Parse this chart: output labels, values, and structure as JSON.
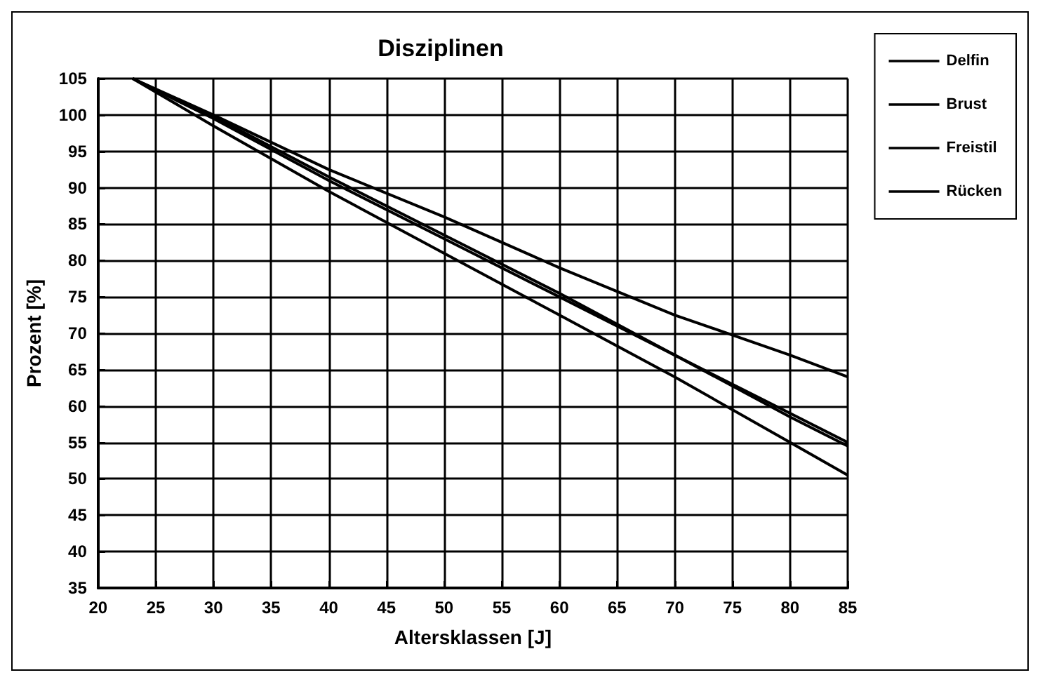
{
  "chart_data": {
    "type": "line",
    "title": "Disziplinen",
    "xlabel": "Altersklassen [J]",
    "ylabel": "Prozent [%]",
    "series": [
      {
        "name": "Delfin",
        "color": "#000000",
        "x": [
          23,
          30,
          40,
          50,
          60,
          70,
          80,
          85
        ],
        "values": [
          105,
          99.5,
          91,
          83,
          75,
          67,
          59,
          55
        ]
      },
      {
        "name": "Brust",
        "color": "#000000",
        "x": [
          23,
          30,
          40,
          50,
          60,
          70,
          80,
          85
        ],
        "values": [
          105,
          99.8,
          91.5,
          83.5,
          75.5,
          67,
          58.5,
          54.5
        ]
      },
      {
        "name": "Freistil",
        "color": "#000000",
        "x": [
          23,
          30,
          40,
          50,
          60,
          70,
          80,
          85
        ],
        "values": [
          105,
          100,
          92.5,
          86,
          79,
          72.5,
          67,
          64
        ]
      },
      {
        "name": "Rücken",
        "color": "#000000",
        "x": [
          23,
          30,
          40,
          50,
          60,
          70,
          80,
          85
        ],
        "values": [
          105,
          98.5,
          89.5,
          81,
          72.5,
          64,
          55,
          50.5
        ]
      }
    ],
    "xlim": [
      20,
      85
    ],
    "xticks": [
      20,
      25,
      30,
      35,
      40,
      45,
      50,
      55,
      60,
      65,
      70,
      75,
      80,
      85
    ],
    "ylim": [
      35,
      105
    ],
    "yticks": [
      35,
      40,
      45,
      50,
      55,
      60,
      65,
      70,
      75,
      80,
      85,
      90,
      95,
      100,
      105
    ],
    "grid": true,
    "legend": "top right",
    "marker": "none",
    "line_style": "solid"
  }
}
